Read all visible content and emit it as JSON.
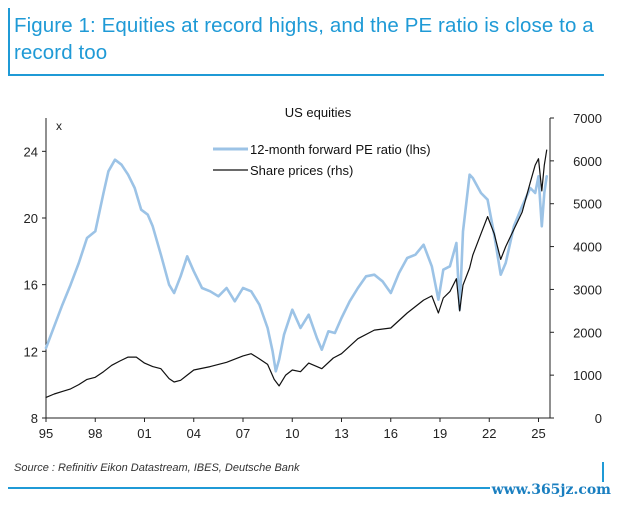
{
  "header": {
    "title": "Figure 1: Equities at record highs, and the PE ratio is close to a record too"
  },
  "source_note": "Source : Refinitiv Eikon Datastream, IBES, Deutsche Bank",
  "watermark": "www.365jz.com",
  "colors": {
    "accent": "#1f9ad6",
    "pe_series": "#9cc3e6",
    "price_series": "#111111"
  },
  "chart_data": {
    "type": "line",
    "title": "US equities",
    "left_axis_unit": "x",
    "x_tick_labels": [
      "95",
      "98",
      "01",
      "04",
      "07",
      "10",
      "13",
      "16",
      "19",
      "22",
      "25"
    ],
    "x_tick_years": [
      1995,
      1998,
      2001,
      2004,
      2007,
      2010,
      2013,
      2016,
      2019,
      2022,
      2025
    ],
    "xlim": [
      1995,
      2025.7
    ],
    "ylim_left": [
      8,
      26
    ],
    "ylim_right": [
      0,
      7000
    ],
    "left_ticks": [
      8,
      12,
      16,
      20,
      24
    ],
    "right_ticks": [
      0,
      1000,
      2000,
      3000,
      4000,
      5000,
      6000,
      7000
    ],
    "grid": false,
    "legend_placement": "top-center",
    "series": [
      {
        "name": "12-month forward PE ratio (lhs)",
        "axis": "left",
        "x": [
          1995.0,
          1995.5,
          1996.0,
          1996.5,
          1997.0,
          1997.5,
          1998.0,
          1998.5,
          1998.8,
          1999.2,
          1999.6,
          2000.0,
          2000.4,
          2000.8,
          2001.2,
          2001.5,
          2002.0,
          2002.5,
          2002.8,
          2003.2,
          2003.6,
          2004.0,
          2004.5,
          2005.0,
          2005.5,
          2006.0,
          2006.5,
          2007.0,
          2007.5,
          2008.0,
          2008.5,
          2008.8,
          2009.0,
          2009.2,
          2009.5,
          2010.0,
          2010.5,
          2011.0,
          2011.5,
          2011.8,
          2012.2,
          2012.6,
          2013.0,
          2013.5,
          2014.0,
          2014.5,
          2015.0,
          2015.5,
          2016.0,
          2016.5,
          2017.0,
          2017.5,
          2018.0,
          2018.5,
          2018.9,
          2019.2,
          2019.6,
          2020.0,
          2020.2,
          2020.4,
          2020.8,
          2021.0,
          2021.5,
          2021.9,
          2022.3,
          2022.7,
          2023.0,
          2023.5,
          2024.0,
          2024.5,
          2024.8,
          2025.0,
          2025.2,
          2025.35,
          2025.5
        ],
        "values": [
          12.2,
          13.5,
          14.8,
          16.0,
          17.3,
          18.8,
          19.2,
          21.5,
          22.8,
          23.5,
          23.2,
          22.6,
          21.8,
          20.5,
          20.2,
          19.5,
          17.8,
          16.0,
          15.5,
          16.5,
          17.7,
          16.8,
          15.8,
          15.6,
          15.3,
          15.8,
          15.0,
          15.8,
          15.6,
          14.8,
          13.4,
          12.0,
          10.8,
          11.5,
          13.0,
          14.5,
          13.4,
          14.2,
          12.8,
          12.1,
          13.2,
          13.1,
          14.0,
          15.0,
          15.8,
          16.5,
          16.6,
          16.2,
          15.5,
          16.7,
          17.6,
          17.8,
          18.4,
          17.1,
          15.1,
          16.9,
          17.1,
          18.5,
          14.5,
          19.2,
          22.6,
          22.4,
          21.5,
          21.1,
          19.0,
          16.6,
          17.3,
          19.5,
          20.7,
          21.8,
          21.5,
          22.5,
          19.5,
          21.5,
          22.5
        ]
      },
      {
        "name": "Share prices (rhs)",
        "axis": "right",
        "x": [
          1995.0,
          1995.5,
          1996.0,
          1996.5,
          1997.0,
          1997.5,
          1998.0,
          1998.5,
          1999.0,
          1999.5,
          2000.0,
          2000.5,
          2001.0,
          2001.5,
          2002.0,
          2002.5,
          2002.8,
          2003.2,
          2003.6,
          2004.0,
          2005.0,
          2006.0,
          2007.0,
          2007.5,
          2008.0,
          2008.5,
          2008.9,
          2009.2,
          2009.6,
          2010.0,
          2010.5,
          2011.0,
          2011.5,
          2011.8,
          2012.5,
          2013.0,
          2014.0,
          2015.0,
          2016.0,
          2017.0,
          2018.0,
          2018.5,
          2018.9,
          2019.2,
          2019.6,
          2020.0,
          2020.2,
          2020.4,
          2020.8,
          2021.0,
          2021.5,
          2021.9,
          2022.3,
          2022.7,
          2023.0,
          2023.5,
          2024.0,
          2024.5,
          2024.8,
          2025.0,
          2025.2,
          2025.35,
          2025.5
        ],
        "values": [
          480,
          560,
          620,
          680,
          780,
          900,
          950,
          1080,
          1230,
          1330,
          1420,
          1420,
          1280,
          1200,
          1150,
          920,
          840,
          880,
          1000,
          1120,
          1200,
          1300,
          1450,
          1500,
          1380,
          1250,
          900,
          750,
          1000,
          1120,
          1080,
          1280,
          1200,
          1150,
          1400,
          1500,
          1850,
          2050,
          2100,
          2450,
          2750,
          2850,
          2450,
          2800,
          2950,
          3250,
          2500,
          3100,
          3500,
          3800,
          4300,
          4700,
          4300,
          3700,
          4000,
          4400,
          4800,
          5500,
          5900,
          6050,
          5300,
          5900,
          6250
        ]
      }
    ]
  }
}
